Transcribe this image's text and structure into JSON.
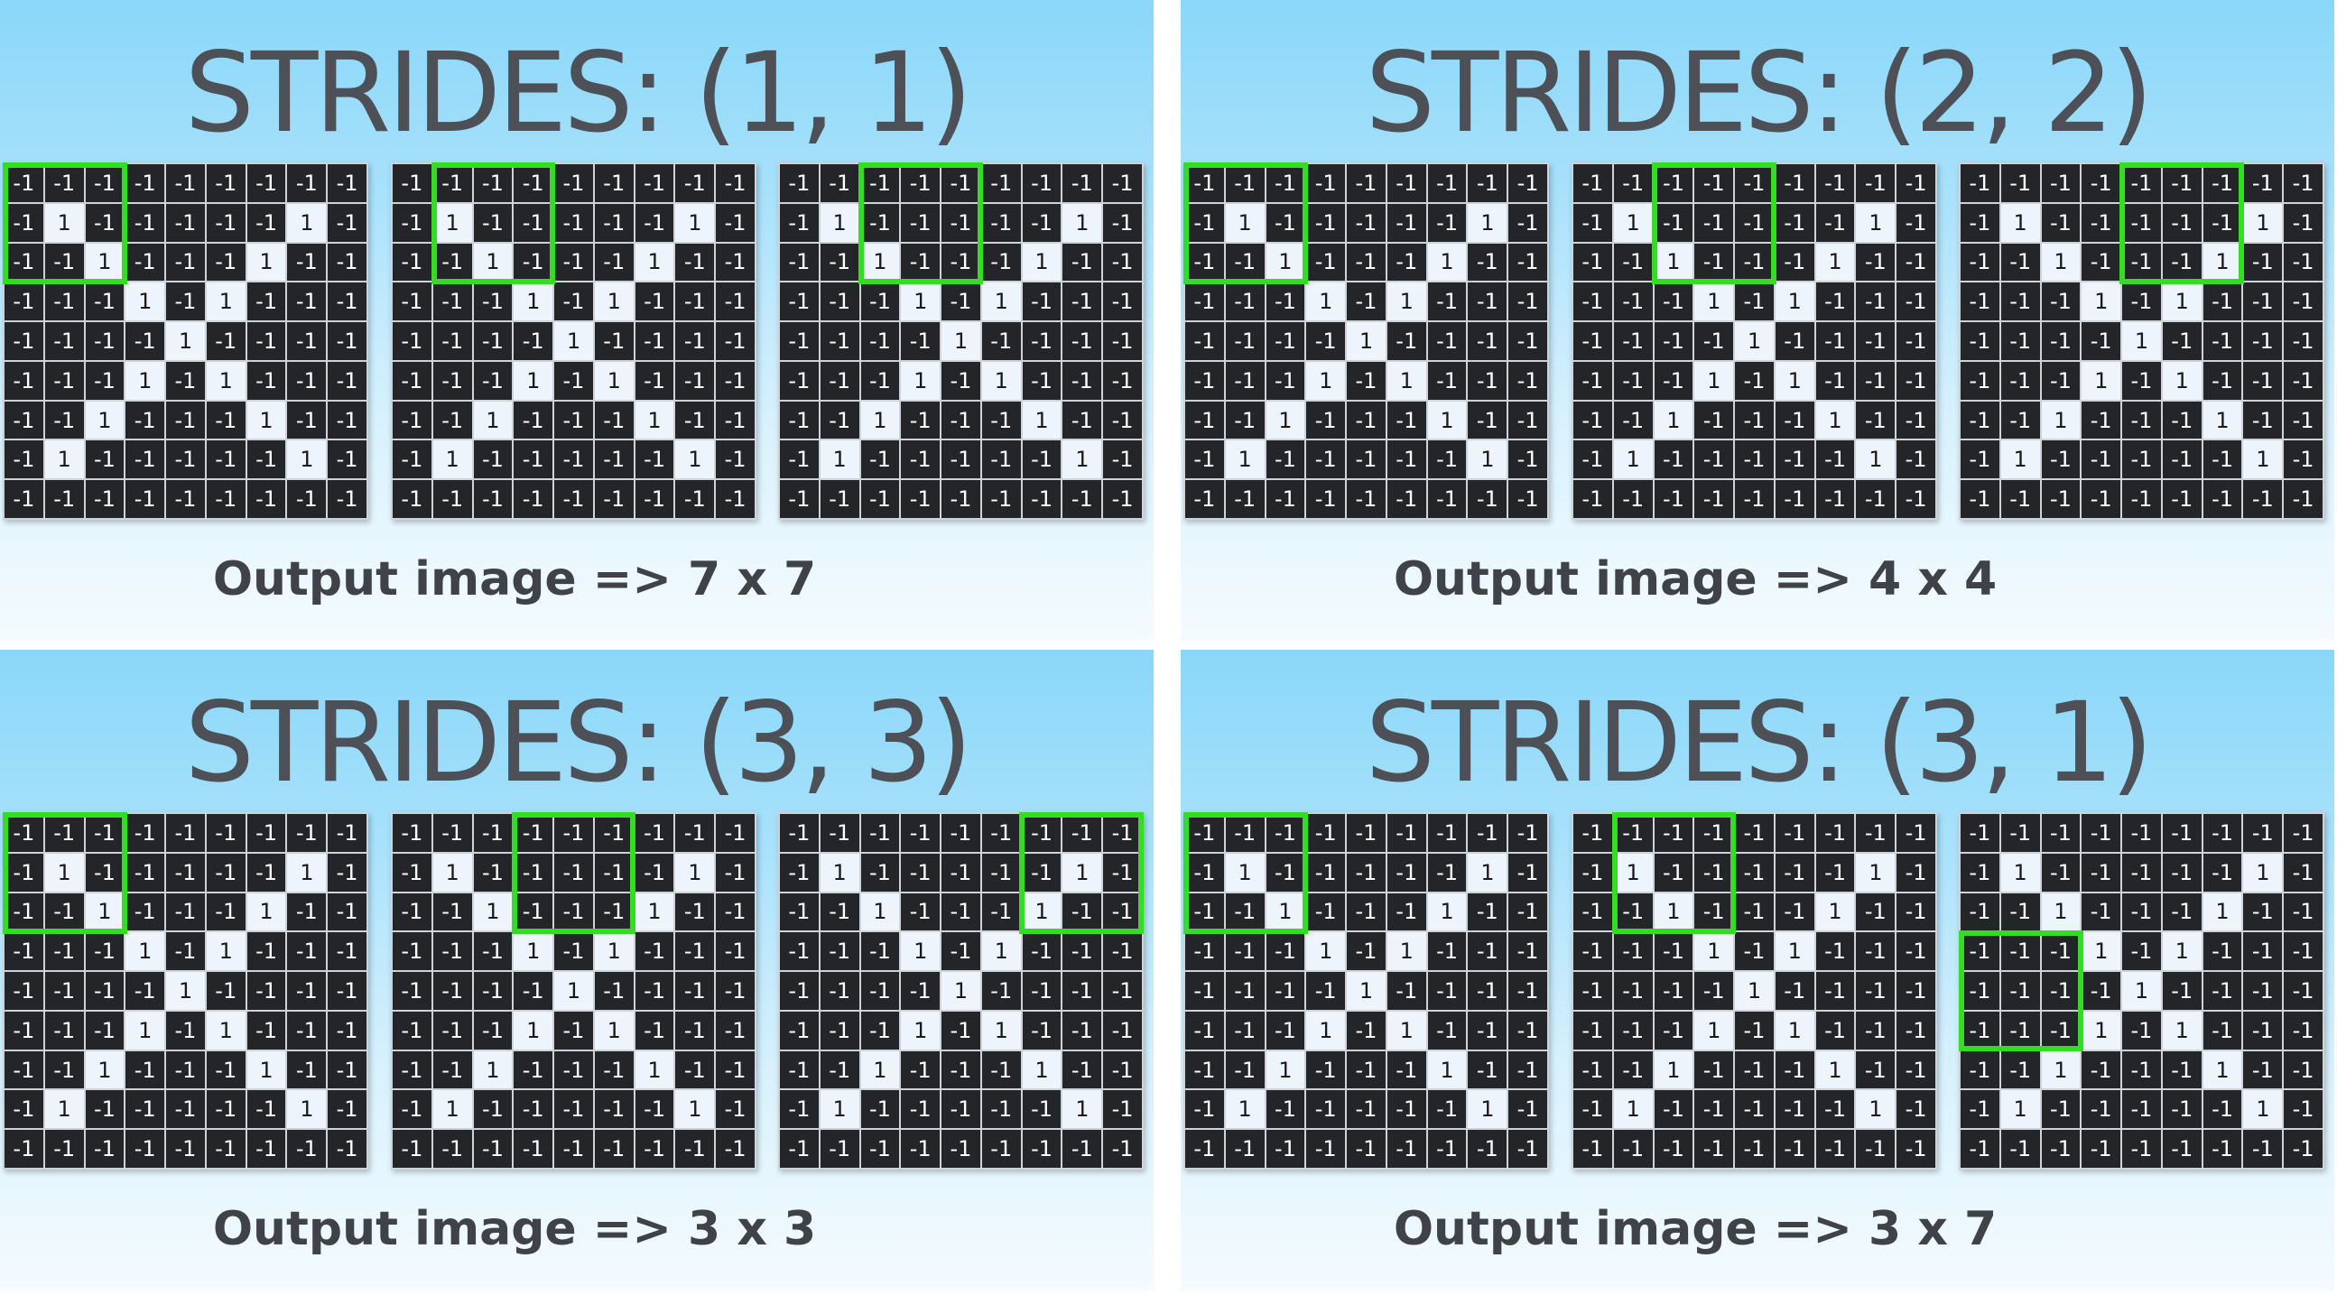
{
  "panels": [
    {
      "title": "STRIDES: (1, 1)",
      "caption": "Output image => 7 x 7",
      "windows": [
        [
          0,
          0
        ],
        [
          0,
          1
        ],
        [
          0,
          2
        ]
      ]
    },
    {
      "title": "STRIDES: (2, 2)",
      "caption": "Output image => 4 x 4",
      "windows": [
        [
          0,
          0
        ],
        [
          0,
          2
        ],
        [
          0,
          4
        ]
      ]
    },
    {
      "title": "STRIDES: (3, 3)",
      "caption": "Output image => 3 x 3",
      "windows": [
        [
          0,
          0
        ],
        [
          0,
          3
        ],
        [
          0,
          6
        ]
      ]
    },
    {
      "title": "STRIDES: (3, 1)",
      "caption": "Output image => 3 x 7",
      "windows": [
        [
          0,
          0
        ],
        [
          0,
          1
        ],
        [
          3,
          0
        ]
      ]
    }
  ],
  "image_matrix": [
    [
      -1,
      -1,
      -1,
      -1,
      -1,
      -1,
      -1,
      -1,
      -1
    ],
    [
      -1,
      1,
      -1,
      -1,
      -1,
      -1,
      -1,
      1,
      -1
    ],
    [
      -1,
      -1,
      1,
      -1,
      -1,
      -1,
      1,
      -1,
      -1
    ],
    [
      -1,
      -1,
      -1,
      1,
      -1,
      1,
      -1,
      -1,
      -1
    ],
    [
      -1,
      -1,
      -1,
      -1,
      1,
      -1,
      -1,
      -1,
      -1
    ],
    [
      -1,
      -1,
      -1,
      1,
      -1,
      1,
      -1,
      -1,
      -1
    ],
    [
      -1,
      -1,
      1,
      -1,
      -1,
      -1,
      1,
      -1,
      -1
    ],
    [
      -1,
      1,
      -1,
      -1,
      -1,
      -1,
      -1,
      1,
      -1
    ],
    [
      -1,
      -1,
      -1,
      -1,
      -1,
      -1,
      -1,
      -1,
      -1
    ]
  ],
  "filter_size": 3,
  "colors": {
    "background_top": "#8ad7f9",
    "cell_negative": "#232528",
    "cell_positive": "#eef4fb",
    "filter_outline": "#33dd22",
    "title_text": "#4d5157"
  }
}
